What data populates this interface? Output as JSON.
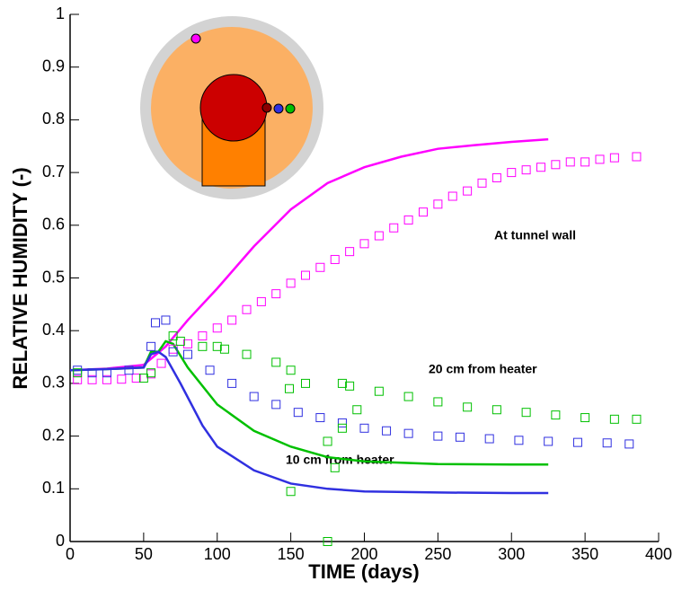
{
  "chart_data": {
    "type": "line",
    "xlabel": "TIME (days)",
    "ylabel": "RELATIVE HUMIDITY (-)",
    "xlim": [
      0,
      400
    ],
    "xticks": [
      0,
      50,
      100,
      150,
      200,
      250,
      300,
      350,
      400
    ],
    "ylim": [
      0,
      1
    ],
    "yticks": [
      0,
      0.1,
      0.2,
      0.3,
      0.4,
      0.5,
      0.6,
      0.7,
      0.8,
      0.9,
      1
    ],
    "annotations": [
      "At tunnel wall",
      "20 cm from heater",
      "10 cm from heater"
    ],
    "series": [
      {
        "mode": "line",
        "color": "#ff00ff",
        "x": [
          0,
          25,
          50,
          65,
          80,
          100,
          125,
          150,
          175,
          200,
          225,
          250,
          275,
          300,
          325
        ],
        "values": [
          0.325,
          0.328,
          0.335,
          0.37,
          0.42,
          0.48,
          0.56,
          0.63,
          0.68,
          0.71,
          0.73,
          0.745,
          0.752,
          0.758,
          0.763
        ]
      },
      {
        "mode": "line",
        "color": "#00c000",
        "x": [
          0,
          25,
          50,
          55,
          60,
          65,
          70,
          80,
          100,
          125,
          150,
          175,
          200,
          250,
          300,
          325
        ],
        "values": [
          0.325,
          0.327,
          0.33,
          0.36,
          0.36,
          0.38,
          0.375,
          0.33,
          0.26,
          0.21,
          0.18,
          0.16,
          0.152,
          0.147,
          0.146,
          0.146
        ]
      },
      {
        "mode": "line",
        "color": "#3030e0",
        "x": [
          0,
          25,
          50,
          55,
          60,
          65,
          75,
          90,
          100,
          125,
          150,
          175,
          200,
          250,
          300,
          325
        ],
        "values": [
          0.325,
          0.327,
          0.33,
          0.355,
          0.36,
          0.35,
          0.3,
          0.22,
          0.18,
          0.135,
          0.11,
          0.1,
          0.095,
          0.093,
          0.092,
          0.092
        ]
      },
      {
        "mode": "markers",
        "color": "#ff00ff",
        "x": [
          5,
          15,
          25,
          35,
          45,
          55,
          62,
          70,
          80,
          90,
          100,
          110,
          120,
          130,
          140,
          150,
          160,
          170,
          180,
          190,
          200,
          210,
          220,
          230,
          240,
          250,
          260,
          270,
          280,
          290,
          300,
          310,
          320,
          330,
          340,
          350,
          360,
          370,
          385
        ],
        "values": [
          0.307,
          0.307,
          0.307,
          0.308,
          0.31,
          0.318,
          0.338,
          0.365,
          0.375,
          0.39,
          0.405,
          0.42,
          0.44,
          0.455,
          0.47,
          0.49,
          0.505,
          0.52,
          0.535,
          0.55,
          0.565,
          0.58,
          0.595,
          0.61,
          0.625,
          0.64,
          0.655,
          0.665,
          0.68,
          0.69,
          0.7,
          0.705,
          0.71,
          0.715,
          0.72,
          0.72,
          0.725,
          0.728,
          0.73
        ]
      },
      {
        "mode": "markers",
        "color": "#3030e0",
        "x": [
          5,
          15,
          25,
          40,
          55,
          58,
          65,
          70,
          80,
          95,
          110,
          125,
          140,
          155,
          170,
          185,
          200,
          215,
          230,
          250,
          265,
          285,
          305,
          325,
          345,
          365,
          380
        ],
        "values": [
          0.325,
          0.32,
          0.32,
          0.325,
          0.37,
          0.415,
          0.42,
          0.36,
          0.355,
          0.325,
          0.3,
          0.275,
          0.26,
          0.245,
          0.235,
          0.225,
          0.215,
          0.21,
          0.205,
          0.2,
          0.198,
          0.195,
          0.192,
          0.19,
          0.188,
          0.187,
          0.185
        ]
      },
      {
        "mode": "markers",
        "color": "#00c000",
        "x": [
          5,
          50,
          55,
          70,
          75,
          90,
          100,
          105,
          120,
          140,
          149,
          150,
          150,
          160,
          175,
          175,
          180,
          185,
          185,
          190,
          195,
          210,
          230,
          250,
          270,
          290,
          310,
          330,
          350,
          370,
          385
        ],
        "values": [
          0.32,
          0.31,
          0.32,
          0.39,
          0.38,
          0.37,
          0.37,
          0.365,
          0.355,
          0.34,
          0.29,
          0.325,
          0.095,
          0.3,
          0,
          0.19,
          0.14,
          0.215,
          0.3,
          0.295,
          0.25,
          0.285,
          0.275,
          0.265,
          0.255,
          0.25,
          0.245,
          0.24,
          0.235,
          0.232,
          0.232
        ]
      }
    ]
  }
}
